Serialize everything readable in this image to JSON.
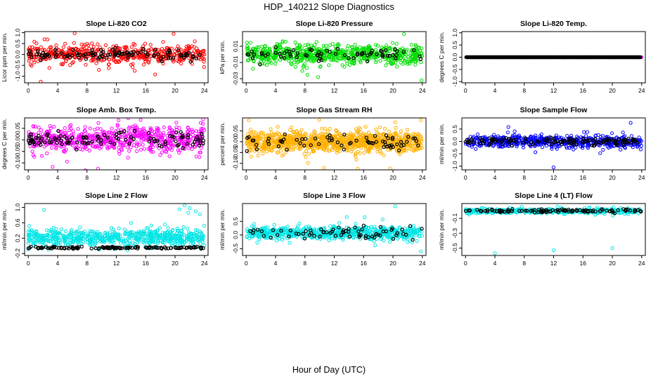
{
  "figure": {
    "title": "HDP_140212  Slope Diagnostics",
    "xlabel": "Hour of Day (UTC)"
  },
  "chart_data": [
    {
      "type": "scatter",
      "title": "Slope Li-820 CO2",
      "ylabel": "Licor ppm per min.",
      "color": "#ff0000",
      "xlim": [
        -0.5,
        24.5
      ],
      "ylim": [
        -1.3,
        1.05
      ],
      "yticks": [
        -1.0,
        -0.5,
        0.0,
        0.5,
        1.0
      ],
      "ytick_labels": [
        "-1.0",
        "-0.5",
        "0.0",
        "0.5",
        "1.0"
      ],
      "xticks": [
        0,
        4,
        8,
        12,
        16,
        20,
        24
      ],
      "xtick_labels": [
        "0",
        "4",
        "8",
        "12",
        "16",
        "20",
        "24"
      ],
      "center": 0.0,
      "spread": 0.38,
      "black_spread": 0.25,
      "n_color": 500,
      "n_black": 110,
      "outliers": [
        [
          1.7,
          -1.25
        ],
        [
          19.8,
          0.95
        ],
        [
          2.2,
          0.7
        ],
        [
          14.5,
          -0.75
        ]
      ]
    },
    {
      "type": "scatter",
      "title": "Slope Li-820 Pressure",
      "ylabel": "kPa per min.",
      "color": "#00dd00",
      "xlim": [
        -0.5,
        24.5
      ],
      "ylim": [
        -0.035,
        0.028
      ],
      "yticks": [
        -0.03,
        -0.01,
        0.01
      ],
      "ytick_labels": [
        "-0.03",
        "-0.01",
        "0.01"
      ],
      "xticks": [
        0,
        4,
        8,
        12,
        16,
        20,
        24
      ],
      "xtick_labels": [
        "0",
        "4",
        "8",
        "12",
        "16",
        "20",
        "24"
      ],
      "center": 0.0,
      "spread": 0.011,
      "black_spread": 0.007,
      "n_color": 700,
      "n_black": 70,
      "outliers": [
        [
          23.9,
          -0.032
        ],
        [
          21.5,
          0.025
        ],
        [
          9.8,
          -0.028
        ]
      ]
    },
    {
      "type": "scatter",
      "title": "Slope Li-820 Temp.",
      "ylabel": "degrees C per min.",
      "color": "#dd00dd",
      "xlim": [
        -0.5,
        24.5
      ],
      "ylim": [
        -1.05,
        1.05
      ],
      "yticks": [
        -1.0,
        -0.5,
        0.0,
        0.5,
        1.0
      ],
      "ytick_labels": [
        "-1.0",
        "-0.5",
        "0.0",
        "0.5",
        "1.0"
      ],
      "xticks": [
        0,
        4,
        8,
        12,
        16,
        20,
        24
      ],
      "xtick_labels": [
        "0",
        "4",
        "8",
        "12",
        "16",
        "20",
        "24"
      ],
      "center": 0.0,
      "spread": 0.0,
      "black_spread": 0.0,
      "n_color": 240,
      "n_black": 240,
      "outliers": []
    },
    {
      "type": "scatter",
      "title": "Slope Amb. Box Temp.",
      "ylabel": "degrees C per min.",
      "color": "#ff00ff",
      "xlim": [
        -0.5,
        24.5
      ],
      "ylim": [
        -0.13,
        0.095
      ],
      "yticks": [
        -0.1,
        -0.05,
        0.0,
        0.05
      ],
      "ytick_labels": [
        "-0.10",
        "-0.05",
        "0.00",
        "0.05"
      ],
      "xticks": [
        0,
        4,
        8,
        12,
        16,
        20,
        24
      ],
      "xtick_labels": [
        "0",
        "4",
        "8",
        "12",
        "16",
        "20",
        "24"
      ],
      "center": 0.0,
      "spread": 0.05,
      "black_spread": 0.035,
      "n_color": 650,
      "n_black": 110,
      "outliers": [
        [
          9.5,
          -0.125
        ],
        [
          12.3,
          0.085
        ]
      ]
    },
    {
      "type": "scatter",
      "title": "Slope Gas Stream RH",
      "ylabel": "percent per min.",
      "color": "#ffb000",
      "xlim": [
        -0.5,
        24.5
      ],
      "ylim": [
        -0.13,
        0.11
      ],
      "yticks": [
        -0.1,
        -0.05,
        0.0,
        0.05
      ],
      "ytick_labels": [
        "-0.10",
        "-0.05",
        "0.00",
        "0.05"
      ],
      "xticks": [
        0,
        4,
        8,
        12,
        16,
        20,
        24
      ],
      "xtick_labels": [
        "0",
        "4",
        "8",
        "12",
        "16",
        "20",
        "24"
      ],
      "center": 0.0,
      "spread": 0.045,
      "black_spread": 0.035,
      "n_color": 1000,
      "n_black": 70,
      "outliers": [
        [
          15.2,
          -0.125
        ],
        [
          23.8,
          0.1
        ],
        [
          20.3,
          0.09
        ]
      ]
    },
    {
      "type": "scatter",
      "title": "Slope Sample Flow",
      "ylabel": "ml/min per min.",
      "color": "#0000ff",
      "xlim": [
        -0.5,
        24.5
      ],
      "ylim": [
        -1.15,
        0.95
      ],
      "yticks": [
        -1.0,
        -0.5,
        0.0,
        0.5
      ],
      "ytick_labels": [
        "-1.0",
        "-0.5",
        "0.0",
        "0.5"
      ],
      "xticks": [
        0,
        4,
        8,
        12,
        16,
        20,
        24
      ],
      "xtick_labels": [
        "0",
        "4",
        "8",
        "12",
        "16",
        "20",
        "24"
      ],
      "center": 0.0,
      "spread": 0.22,
      "black_spread": 0.15,
      "n_color": 550,
      "n_black": 130,
      "outliers": [
        [
          12.0,
          -1.05
        ],
        [
          22.5,
          0.75
        ]
      ]
    },
    {
      "type": "scatter",
      "title": "Slope Line 2 Flow",
      "ylabel": "ml/min per min.",
      "color": "#00e5e5",
      "xlim": [
        -0.5,
        24.5
      ],
      "ylim": [
        -0.25,
        1.1
      ],
      "yticks": [
        -0.2,
        0.2,
        0.6,
        1.0
      ],
      "ytick_labels": [
        "-0.2",
        "0.2",
        "0.6",
        "1.0"
      ],
      "xticks": [
        0,
        4,
        8,
        12,
        16,
        20,
        24
      ],
      "xtick_labels": [
        "0",
        "4",
        "8",
        "12",
        "16",
        "20",
        "24"
      ],
      "center": 0.22,
      "spread": 0.2,
      "black_spread": 0.03,
      "black_center": -0.05,
      "n_color": 650,
      "n_black": 130,
      "outliers": [
        [
          20.6,
          0.95
        ],
        [
          21.3,
          1.05
        ],
        [
          22.0,
          0.98
        ],
        [
          22.8,
          0.9
        ],
        [
          23.4,
          0.82
        ],
        [
          21.8,
          0.86
        ]
      ]
    },
    {
      "type": "scatter",
      "title": "Slope Line 3 Flow",
      "ylabel": "ml/min per min.",
      "color": "#00e5e5",
      "xlim": [
        -0.5,
        24.5
      ],
      "ylim": [
        -0.75,
        1.15
      ],
      "yticks": [
        -0.5,
        0.0,
        0.5
      ],
      "ytick_labels": [
        "-0.5",
        "0.0",
        "0.5"
      ],
      "xticks": [
        0,
        4,
        8,
        12,
        16,
        20,
        24
      ],
      "xtick_labels": [
        "0",
        "4",
        "8",
        "12",
        "16",
        "20",
        "24"
      ],
      "center": 0.08,
      "spread": 0.22,
      "black_spread": 0.25,
      "n_color": 650,
      "n_black": 70,
      "outliers": [
        [
          20.3,
          1.05
        ],
        [
          23.8,
          -0.6
        ]
      ]
    },
    {
      "type": "scatter",
      "title": "Slope Line 4 (LT) Flow",
      "ylabel": "ml/min per min.",
      "color": "#00e5e5",
      "xlim": [
        -0.5,
        24.5
      ],
      "ylim": [
        -0.6,
        0.1
      ],
      "yticks": [
        -0.5,
        -0.3,
        -0.1
      ],
      "ytick_labels": [
        "-0.5",
        "-0.3",
        "-0.1"
      ],
      "xticks": [
        0,
        4,
        8,
        12,
        16,
        20,
        24
      ],
      "xtick_labels": [
        "0",
        "4",
        "8",
        "12",
        "16",
        "20",
        "24"
      ],
      "center": 0.0,
      "spread": 0.03,
      "black_spread": 0.02,
      "n_color": 450,
      "n_black": 110,
      "outliers": [
        [
          4.0,
          -0.57
        ],
        [
          12.0,
          -0.53
        ],
        [
          20.0,
          -0.5
        ]
      ]
    }
  ]
}
